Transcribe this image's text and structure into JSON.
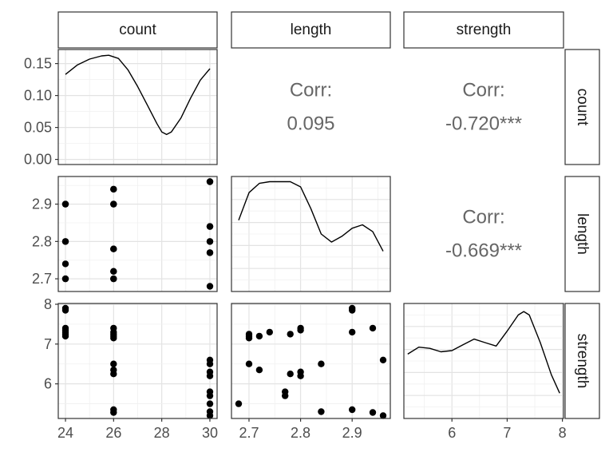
{
  "chart_data": {
    "type": "scatter",
    "variables": [
      "count",
      "length",
      "strength"
    ],
    "axis_ranges": {
      "count": [
        23.7,
        30.3
      ],
      "length": [
        2.666,
        2.974
      ],
      "strength": [
        5.13,
        8.02
      ]
    },
    "y_ticks": {
      "count": [
        "0.00",
        "0.05",
        "0.10",
        "0.15"
      ],
      "length": [
        "2.7",
        "2.8",
        "2.9"
      ],
      "strength": [
        "6",
        "7",
        "8"
      ]
    },
    "x_ticks": {
      "count": [
        "24",
        "26",
        "28",
        "30"
      ],
      "length": [
        "2.7",
        "2.8",
        "2.9"
      ],
      "strength": [
        "6",
        "7",
        "8"
      ]
    },
    "correlations": [
      {
        "row": "count",
        "col": "length",
        "label": "Corr:",
        "value": "0.095"
      },
      {
        "row": "count",
        "col": "strength",
        "label": "Corr:",
        "value": "-0.720***"
      },
      {
        "row": "length",
        "col": "strength",
        "label": "Corr:",
        "value": "-0.669***"
      }
    ],
    "density": {
      "count": {
        "ylim": [
          -0.008,
          0.172
        ],
        "points": [
          [
            24,
            0.133
          ],
          [
            24.5,
            0.148
          ],
          [
            25,
            0.157
          ],
          [
            25.5,
            0.162
          ],
          [
            25.8,
            0.163
          ],
          [
            26.2,
            0.158
          ],
          [
            26.6,
            0.14
          ],
          [
            27,
            0.114
          ],
          [
            27.4,
            0.085
          ],
          [
            27.8,
            0.056
          ],
          [
            28,
            0.043
          ],
          [
            28.2,
            0.039
          ],
          [
            28.4,
            0.043
          ],
          [
            28.8,
            0.065
          ],
          [
            29.2,
            0.096
          ],
          [
            29.6,
            0.124
          ],
          [
            30,
            0.142
          ]
        ]
      },
      "length": {
        "points": [
          [
            2.68,
            0.62
          ],
          [
            2.7,
            0.86
          ],
          [
            2.72,
            0.94
          ],
          [
            2.74,
            0.955
          ],
          [
            2.76,
            0.955
          ],
          [
            2.78,
            0.955
          ],
          [
            2.8,
            0.91
          ],
          [
            2.82,
            0.72
          ],
          [
            2.84,
            0.5
          ],
          [
            2.86,
            0.43
          ],
          [
            2.88,
            0.48
          ],
          [
            2.9,
            0.55
          ],
          [
            2.92,
            0.58
          ],
          [
            2.94,
            0.52
          ],
          [
            2.96,
            0.35
          ]
        ]
      },
      "strength": {
        "points": [
          [
            5.2,
            0.56
          ],
          [
            5.4,
            0.62
          ],
          [
            5.6,
            0.61
          ],
          [
            5.8,
            0.58
          ],
          [
            6.0,
            0.59
          ],
          [
            6.2,
            0.64
          ],
          [
            6.4,
            0.69
          ],
          [
            6.6,
            0.66
          ],
          [
            6.8,
            0.63
          ],
          [
            7.0,
            0.76
          ],
          [
            7.2,
            0.9
          ],
          [
            7.3,
            0.93
          ],
          [
            7.4,
            0.9
          ],
          [
            7.6,
            0.66
          ],
          [
            7.8,
            0.38
          ],
          [
            7.95,
            0.22
          ]
        ]
      }
    },
    "samples": [
      {
        "count": 24,
        "length": 2.9,
        "strength": 7.9
      },
      {
        "count": 24,
        "length": 2.9,
        "strength": 7.85
      },
      {
        "count": 24,
        "length": 2.8,
        "strength": 7.4
      },
      {
        "count": 24,
        "length": 2.8,
        "strength": 7.35
      },
      {
        "count": 24,
        "length": 2.74,
        "strength": 7.3
      },
      {
        "count": 24,
        "length": 2.7,
        "strength": 7.25
      },
      {
        "count": 24,
        "length": 2.7,
        "strength": 7.2
      },
      {
        "count": 26,
        "length": 2.94,
        "strength": 7.4
      },
      {
        "count": 26,
        "length": 2.9,
        "strength": 7.3
      },
      {
        "count": 26,
        "length": 2.78,
        "strength": 7.25
      },
      {
        "count": 26,
        "length": 2.72,
        "strength": 7.2
      },
      {
        "count": 26,
        "length": 2.7,
        "strength": 7.15
      },
      {
        "count": 26,
        "length": 2.7,
        "strength": 6.5
      },
      {
        "count": 26,
        "length": 2.72,
        "strength": 6.35
      },
      {
        "count": 26,
        "length": 2.78,
        "strength": 6.25
      },
      {
        "count": 26,
        "length": 2.9,
        "strength": 5.35
      },
      {
        "count": 26,
        "length": 2.94,
        "strength": 5.28
      },
      {
        "count": 30,
        "length": 2.96,
        "strength": 6.6
      },
      {
        "count": 30,
        "length": 2.84,
        "strength": 6.5
      },
      {
        "count": 30,
        "length": 2.8,
        "strength": 6.3
      },
      {
        "count": 30,
        "length": 2.8,
        "strength": 6.2
      },
      {
        "count": 30,
        "length": 2.77,
        "strength": 5.8
      },
      {
        "count": 30,
        "length": 2.77,
        "strength": 5.7
      },
      {
        "count": 30,
        "length": 2.68,
        "strength": 5.5
      },
      {
        "count": 30,
        "length": 2.84,
        "strength": 5.3
      },
      {
        "count": 30,
        "length": 2.96,
        "strength": 5.2
      }
    ]
  }
}
